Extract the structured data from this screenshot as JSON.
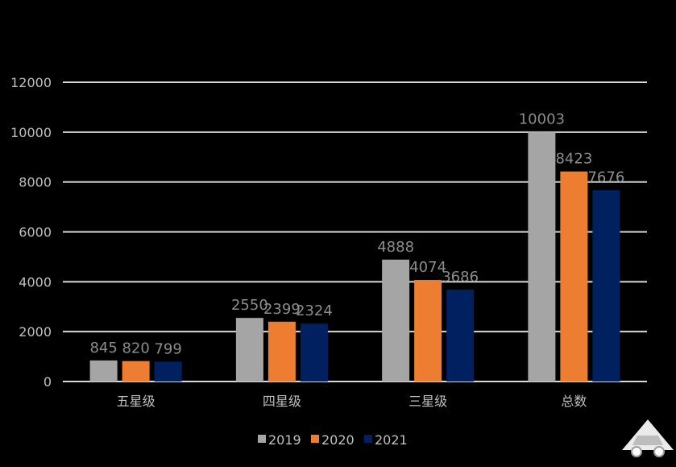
{
  "chart_data": {
    "type": "bar",
    "categories": [
      "五星级",
      "四星级",
      "三星级",
      "总数"
    ],
    "series": [
      {
        "name": "2019",
        "color": "#a5a5a5",
        "values": [
          845,
          2550,
          4888,
          10003
        ]
      },
      {
        "name": "2020",
        "color": "#ed7d31",
        "values": [
          820,
          2399,
          4074,
          8423
        ]
      },
      {
        "name": "2021",
        "color": "#002060",
        "values": [
          799,
          2324,
          3686,
          7676
        ]
      }
    ],
    "yticks": [
      0,
      2000,
      4000,
      6000,
      8000,
      10000,
      12000
    ],
    "ylim": [
      0,
      12000
    ],
    "grid": true,
    "legend": "bottom",
    "title": "",
    "xlabel": "",
    "ylabel": ""
  },
  "colors": {
    "background": "#000000",
    "grid": "#d9d9d9",
    "axis_text": "#bfbfbf",
    "data_label": "#8c8c8c"
  },
  "watermark": {
    "icon": "car-icon"
  }
}
